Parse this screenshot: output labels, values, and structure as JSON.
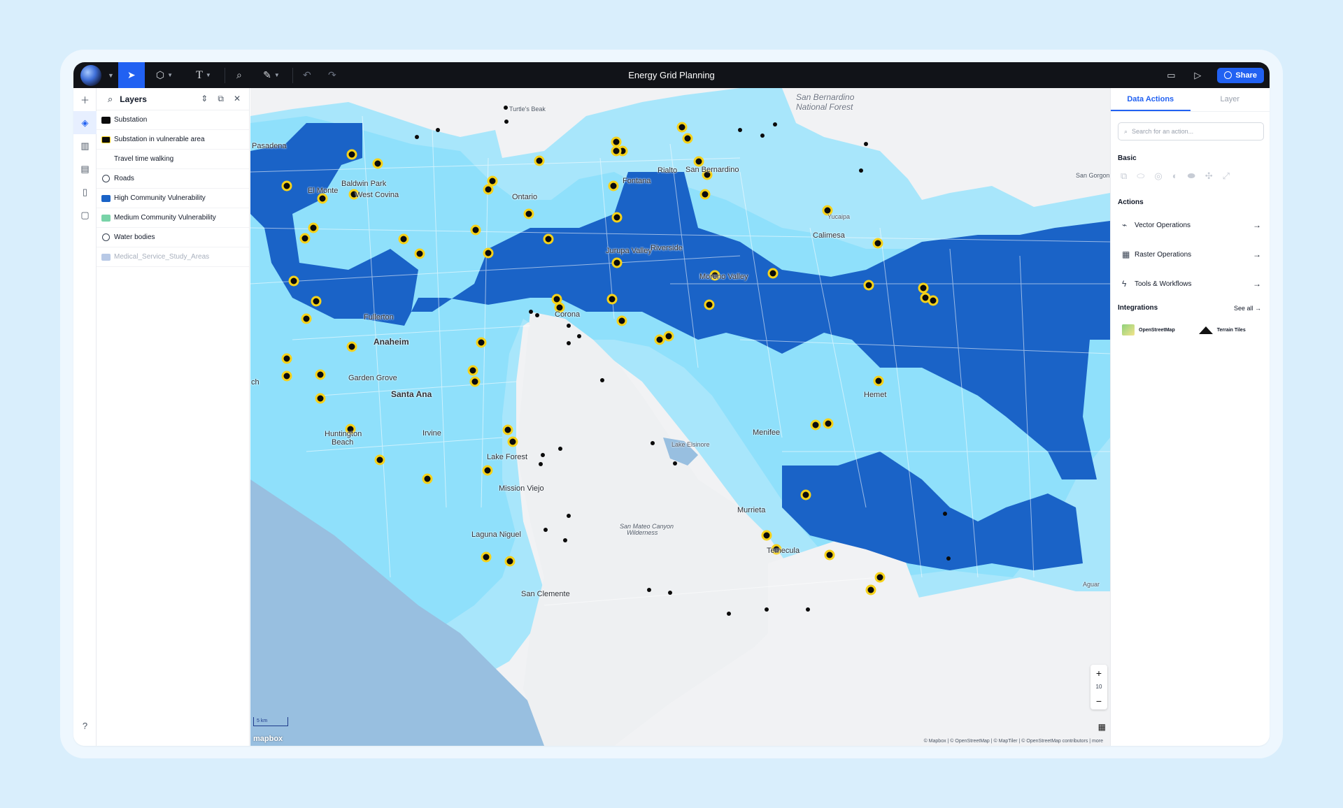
{
  "app": {
    "title": "Energy Grid Planning",
    "share_label": "Share"
  },
  "layers_panel": {
    "title": "Layers",
    "items": [
      {
        "label": "Substation",
        "swatch": "#0b0b0b",
        "border": "#0b0b0b"
      },
      {
        "label": "Substation in vulnerable area",
        "swatch": "#0b0b0b",
        "border": "#f6d21a"
      },
      {
        "label": "Travel time walking"
      },
      {
        "label": "Roads",
        "icon": "globe-icon"
      },
      {
        "label": "High Community Vulnerability",
        "swatch": "#1a63c7"
      },
      {
        "label": "Medium Community Vulnerability",
        "swatch": "#79d3a8"
      },
      {
        "label": "Water bodies",
        "icon": "globe-icon"
      },
      {
        "label": "Medical_Service_Study_Areas",
        "swatch": "#b8c9e6",
        "muted": true
      }
    ]
  },
  "right_panel": {
    "tabs": [
      "Data Actions",
      "Layer"
    ],
    "active_tab": "Data Actions",
    "search_placeholder": "Search for an action...",
    "basic_title": "Basic",
    "actions_title": "Actions",
    "actions": [
      {
        "label": "Vector Operations",
        "icon": "vector-icon"
      },
      {
        "label": "Raster Operations",
        "icon": "raster-icon"
      },
      {
        "label": "Tools & Workflows",
        "icon": "bolt-icon"
      }
    ],
    "integrations_title": "Integrations",
    "see_all": "See all",
    "integrations": [
      "OpenStreetMap",
      "Terrain Tiles"
    ]
  },
  "map": {
    "zoom_level": "10",
    "scale_label": "5 km",
    "mapbox_label": "mapbox",
    "attribution": "© Mapbox | © OpenStreetMap | © MapTiler | © OpenStreetMap contributors | more",
    "labels": {
      "l1": "Pasadena",
      "l2": "Turtle's Beak",
      "l3": "San Bernardino",
      "l4": "National Forest",
      "l5": "El Monte",
      "l6": "Baldwin Park",
      "l7": "West Covina",
      "l8": "Ontario",
      "l9": "Fontana",
      "l10": "Rialto",
      "l11": "San Bernardino",
      "l12": "Yucaipa",
      "l13": "Calimesa",
      "l14": "Jurupa Valley",
      "l15": "Riverside",
      "l16": "Moreno Valley",
      "l17": "Corona",
      "l18": "Fullerton",
      "l19": "Anaheim",
      "l20": "Garden Grove",
      "l21": "Santa Ana",
      "l22": "Huntington",
      "l23": "Beach",
      "l24": "Irvine",
      "l25": "Lake Forest",
      "l26": "Mission Viejo",
      "l27": "Laguna Niguel",
      "l28": "San Clemente",
      "l29": "Lake Elsinore",
      "l30": "Menifee",
      "l31": "Hemet",
      "l32": "Murrieta",
      "l33": "Temecula",
      "l34": "San Mateo Canyon",
      "l35": "Wilderness",
      "l36": "San Gorgoni",
      "l37": "ch",
      "l38": "Aguar"
    }
  },
  "colors": {
    "accent": "#2161f2",
    "high_vulnerability": "#1a63c7",
    "medium_area": "#8fe0fb",
    "light_area": "#a8e6fb",
    "ocean": "#98bfe0",
    "substation_ring": "#f6d21a"
  }
}
